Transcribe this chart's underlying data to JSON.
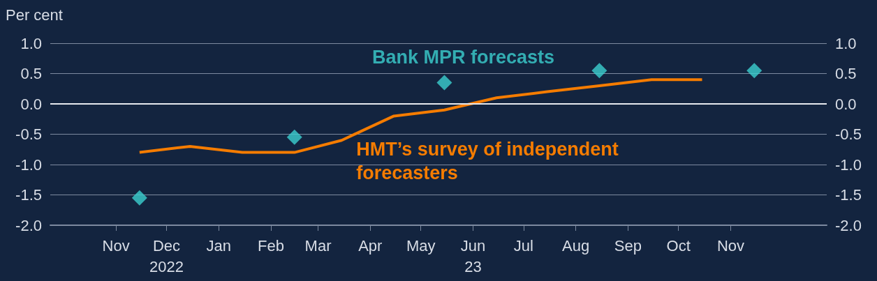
{
  "chart_data": {
    "type": "line",
    "ylabel": "Per cent",
    "x": [
      "2022-11-15",
      "2022-12-15",
      "2023-01-15",
      "2023-02-15",
      "2023-03-15",
      "2023-04-15",
      "2023-05-15",
      "2023-06-15",
      "2023-07-15",
      "2023-08-15",
      "2023-09-15",
      "2023-10-15"
    ],
    "series": [
      {
        "name": "Bank MPR forecasts",
        "type": "scatter",
        "marker": "diamond",
        "color": "#3ccfcf",
        "x": [
          "2022-11-15",
          "2023-02-15",
          "2023-05-15",
          "2023-08-15",
          "2023-11-15"
        ],
        "values": [
          -1.55,
          -0.55,
          0.35,
          0.55,
          0.55
        ]
      },
      {
        "name": "HMT’s survey of independent forecasters",
        "marker": "none",
        "color": "#f57c00",
        "values": [
          -0.8,
          -0.7,
          -0.8,
          -0.8,
          -0.6,
          -0.2,
          -0.1,
          0.1,
          0.2,
          0.3,
          0.4,
          0.4
        ]
      }
    ],
    "xlim": [
      "2022-09-23",
      "2023-12-28"
    ],
    "xticks": [
      {
        "value": "2022-11-01",
        "label": "Nov"
      },
      {
        "value": "2022-12-01",
        "label": "Dec\n2022"
      },
      {
        "value": "2023-01-01",
        "label": "Jan"
      },
      {
        "value": "2023-02-01",
        "label": "Feb"
      },
      {
        "value": "2023-03-01",
        "label": "Mar"
      },
      {
        "value": "2023-04-01",
        "label": "Apr"
      },
      {
        "value": "2023-05-01",
        "label": "May"
      },
      {
        "value": "2023-06-01",
        "label": "Jun\n23"
      },
      {
        "value": "2023-07-01",
        "label": "Jul"
      },
      {
        "value": "2023-08-01",
        "label": "Aug"
      },
      {
        "value": "2023-09-01",
        "label": "Sep"
      },
      {
        "value": "2023-10-01",
        "label": "Oct"
      },
      {
        "value": "2023-11-01",
        "label": "Nov"
      }
    ],
    "ylim": [
      -2,
      1
    ],
    "yticks": [
      {
        "value": -2,
        "label": "-2.0"
      },
      {
        "value": -1.5,
        "label": "-1.5"
      },
      {
        "value": -1,
        "label": "-1.0"
      },
      {
        "value": -0.5,
        "label": "-0.5"
      },
      {
        "value": 0,
        "label": "0.0"
      },
      {
        "value": 0.5,
        "label": "0.5"
      },
      {
        "value": 1,
        "label": "1.0"
      }
    ],
    "y2lim": [
      -2,
      1
    ],
    "y2ticks": [
      {
        "value": -2,
        "label": "-2.0"
      },
      {
        "value": -1.5,
        "label": "-1.5"
      },
      {
        "value": -1,
        "label": "-1.0"
      },
      {
        "value": -0.5,
        "label": "-0.5"
      },
      {
        "value": 0,
        "label": "0.0"
      },
      {
        "value": 0.5,
        "label": "0.5"
      },
      {
        "value": 1,
        "label": "1.0"
      }
    ],
    "grid": "y",
    "legend": false,
    "ref_lines": [
      {
        "axis": "y",
        "value": 0,
        "color": "#e6e9ee"
      }
    ]
  }
}
